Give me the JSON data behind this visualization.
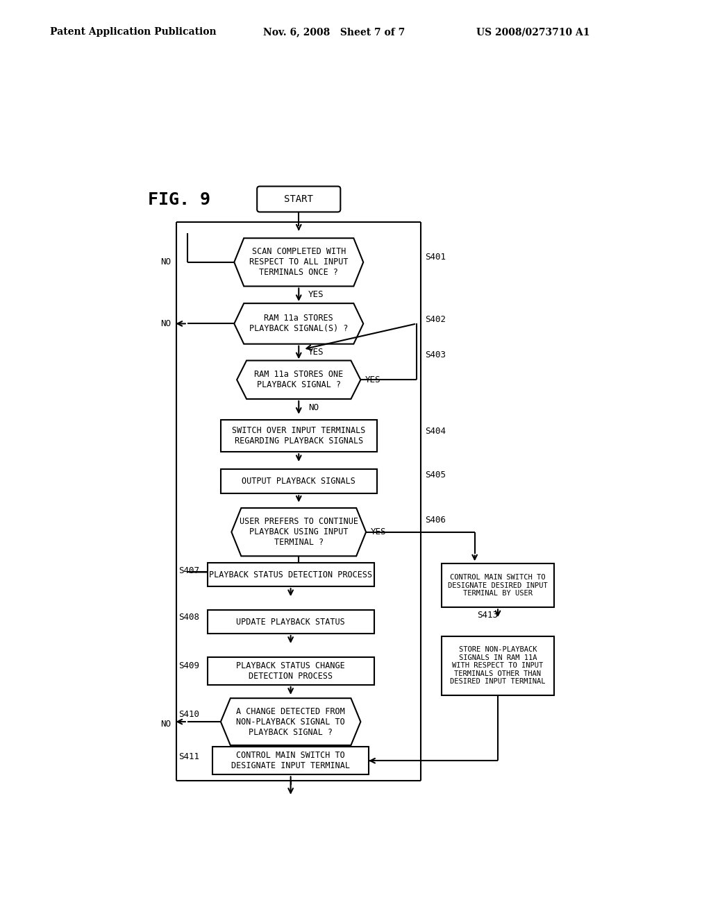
{
  "bg_color": "#ffffff",
  "header_left": "Patent Application Publication",
  "header_mid": "Nov. 6, 2008   Sheet 7 of 7",
  "header_right": "US 2008/0273710 A1",
  "fig_label": "FIG. 9",
  "start_text": "START",
  "S401_text": "SCAN COMPLETED WITH\nRESPECT TO ALL INPUT\nTERMINALS ONCE ?",
  "S402_text": "RAM 11a STORES\nPLAYBACK SIGNAL(S) ?",
  "S403_text": "RAM 11a STORES ONE\nPLAYBACK SIGNAL ?",
  "S404_text": "SWITCH OVER INPUT TERMINALS\nREGARDING PLAYBACK SIGNALS",
  "S405_text": "OUTPUT PLAYBACK SIGNALS",
  "S406_text": "USER PREFERS TO CONTINUE\nPLAYBACK USING INPUT\nTERMINAL ?",
  "S407_text": "PLAYBACK STATUS DETECTION PROCESS",
  "S408_text": "UPDATE PLAYBACK STATUS",
  "S409_text": "PLAYBACK STATUS CHANGE\nDETECTION PROCESS",
  "S410_text": "A CHANGE DETECTED FROM\nNON-PLAYBACK SIGNAL TO\nPLAYBACK SIGNAL ?",
  "S411_text": "CONTROL MAIN SWITCH TO\nDESIGNATE INPUT TERMINAL",
  "S412_text": "CONTROL MAIN SWITCH TO\nDESIGNATE DESIRED INPUT\nTERMINAL BY USER",
  "S413_text": "STORE NON-PLAYBACK\nSIGNALS IN RAM 11A\nWITH RESPECT TO INPUT\nTERMINALS OTHER THAN\nDESIRED INPUT TERMINAL"
}
